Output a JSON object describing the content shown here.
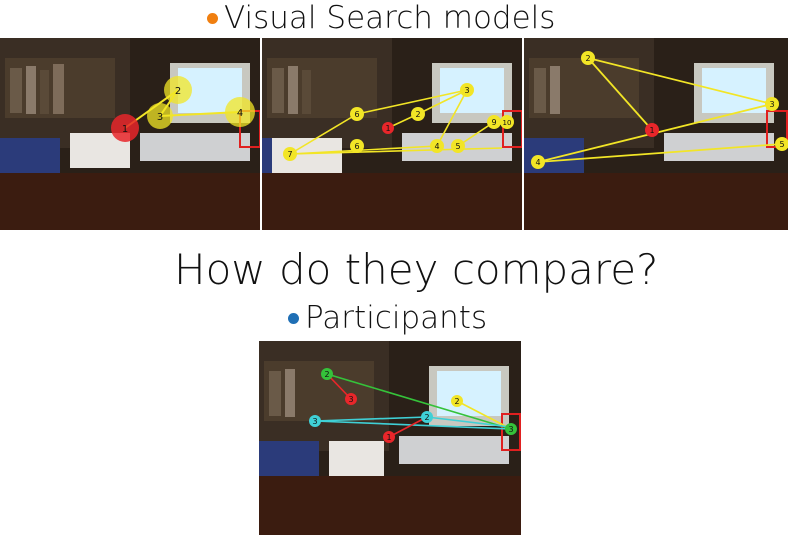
{
  "headings": {
    "visual_search_models": "Visual Search models",
    "compare": "How do they compare?",
    "participants": "Participants"
  },
  "colors": {
    "models_bullet": "#f07f10",
    "participants_bullet": "#1f6fb5",
    "fixation_yellow": "#f2e526",
    "fixation_red": "#e8262a",
    "fixation_green": "#35c23a",
    "fixation_cyan": "#3fd0d6",
    "target_box": "#e02020"
  },
  "panels": [
    {
      "id": "model-1",
      "fixations": [
        {
          "label": "1",
          "color": "red",
          "big": true
        },
        {
          "label": "2",
          "color": "yellow",
          "big": true
        },
        {
          "label": "3",
          "color": "yellow",
          "big": true
        },
        {
          "label": "4",
          "color": "yellow",
          "big": true
        }
      ]
    },
    {
      "id": "model-2",
      "fixations": [
        {
          "label": "1",
          "color": "red"
        },
        {
          "label": "2",
          "color": "yellow"
        },
        {
          "label": "3",
          "color": "yellow"
        },
        {
          "label": "4",
          "color": "yellow"
        },
        {
          "label": "5",
          "color": "yellow"
        },
        {
          "label": "6",
          "color": "yellow"
        },
        {
          "label": "6",
          "color": "yellow"
        },
        {
          "label": "7",
          "color": "yellow"
        },
        {
          "label": "9",
          "color": "yellow"
        },
        {
          "label": "10",
          "color": "yellow"
        }
      ]
    },
    {
      "id": "model-3",
      "fixations": [
        {
          "label": "1",
          "color": "red"
        },
        {
          "label": "2",
          "color": "yellow"
        },
        {
          "label": "3",
          "color": "yellow"
        },
        {
          "label": "4",
          "color": "yellow"
        },
        {
          "label": "5",
          "color": "yellow"
        }
      ]
    },
    {
      "id": "participants",
      "fixations": [
        {
          "label": "1",
          "color": "red"
        },
        {
          "label": "2",
          "color": "green"
        },
        {
          "label": "3",
          "color": "red"
        },
        {
          "label": "2",
          "color": "yellow"
        },
        {
          "label": "2",
          "color": "cyan"
        },
        {
          "label": "3",
          "color": "cyan"
        },
        {
          "label": "3",
          "color": "green"
        }
      ]
    }
  ]
}
